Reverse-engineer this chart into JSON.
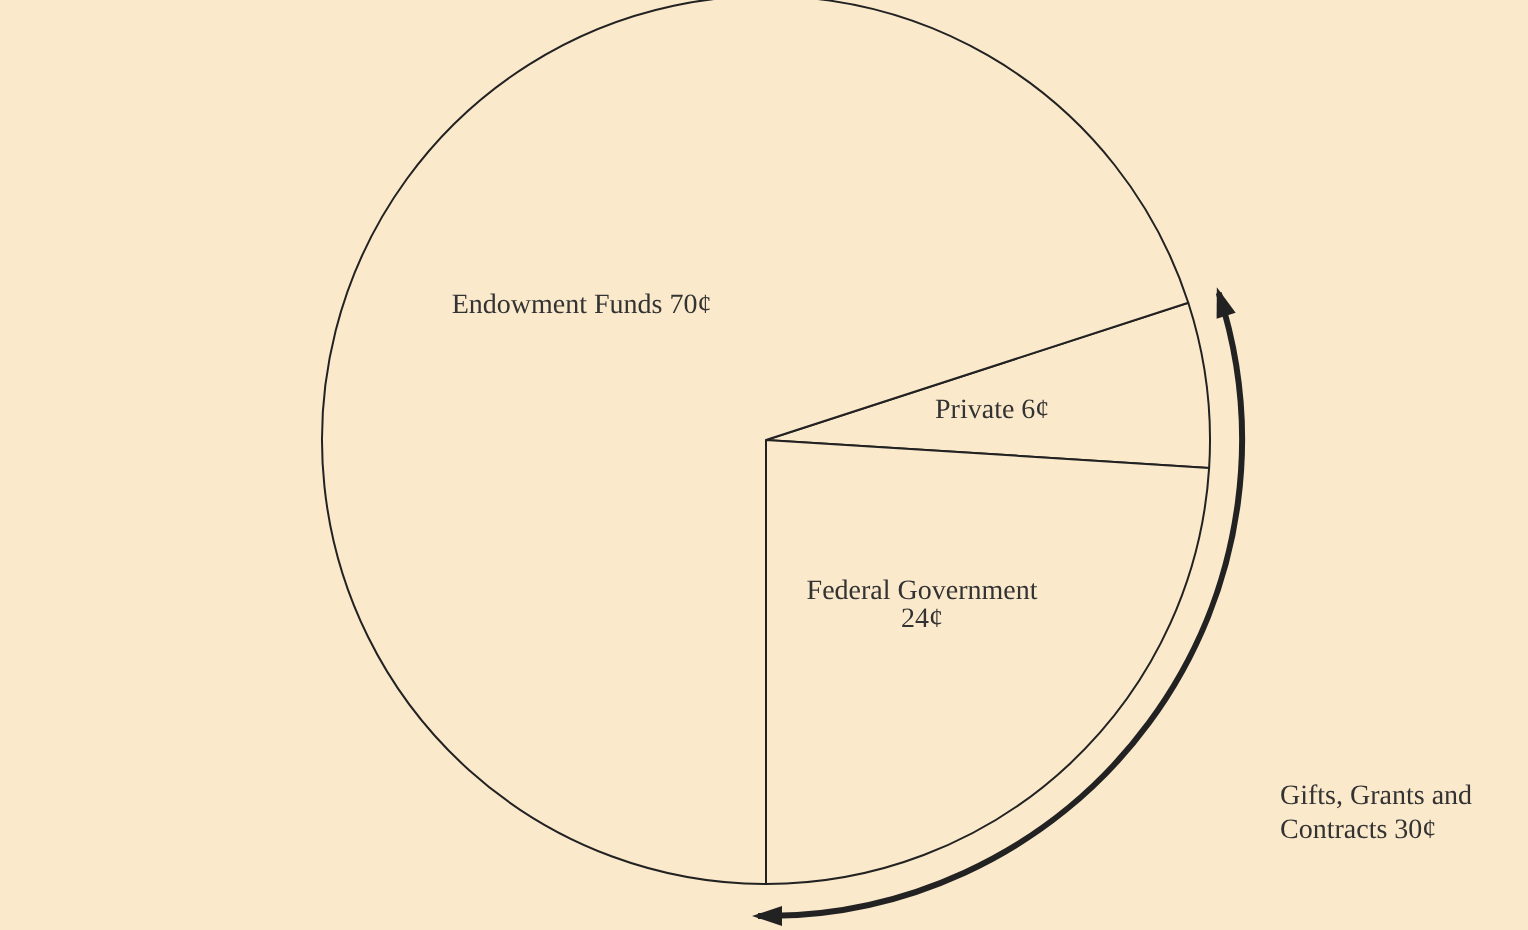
{
  "chart_data": {
    "type": "pie",
    "categories": [
      "Private",
      "Federal Government",
      "Endowment Funds"
    ],
    "values": [
      6,
      24,
      70
    ],
    "value_labels": [
      "6¢",
      "24¢",
      "70¢"
    ],
    "colors": [
      "#fbe9cb",
      "#fbe9cb",
      "#fbe9cb"
    ],
    "annotations": [
      "Gifts, Grants and Contracts 30¢"
    ],
    "legend": false
  }
}
